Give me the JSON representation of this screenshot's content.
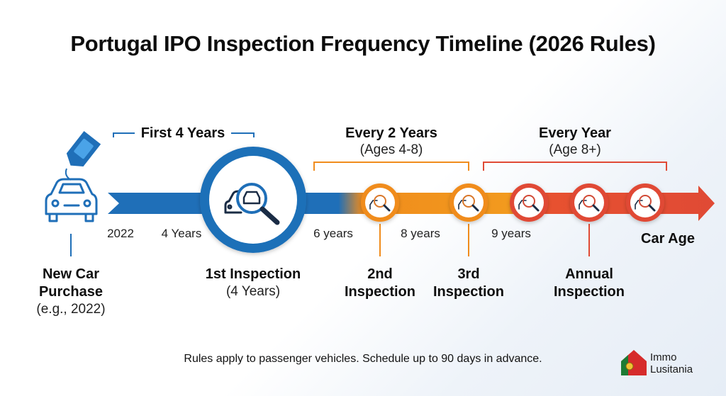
{
  "title": "Portugal IPO Inspection Frequency Timeline (2026 Rules)",
  "phases": {
    "first": {
      "label": "First 4 Years",
      "color": "#1f6fb8"
    },
    "biennial": {
      "label": "Every 2 Years",
      "sub": "(Ages 4-8)",
      "color": "#f08c1c"
    },
    "annual": {
      "label": "Every Year",
      "sub": "(Age 8+)",
      "color": "#e04a35"
    }
  },
  "axis": {
    "ticks": [
      "2022",
      "4 Years",
      "6 years",
      "8 years",
      "9 years"
    ],
    "end_label": "Car Age"
  },
  "milestones": {
    "purchase": {
      "line1": "New Car",
      "line2": "Purchase",
      "line3": "(e.g., 2022)"
    },
    "first": {
      "line1": "1st Inspection",
      "line2": "(4 Years)"
    },
    "second": {
      "line1": "2nd",
      "line2": "Inspection"
    },
    "third": {
      "line1": "3rd",
      "line2": "Inspection"
    },
    "annual": {
      "line1": "Annual",
      "line2": "Inspection"
    }
  },
  "footnote": "Rules apply to passenger vehicles. Schedule up to 90 days in advance.",
  "logo": {
    "line1": "Immo",
    "line2": "Lusitania"
  }
}
